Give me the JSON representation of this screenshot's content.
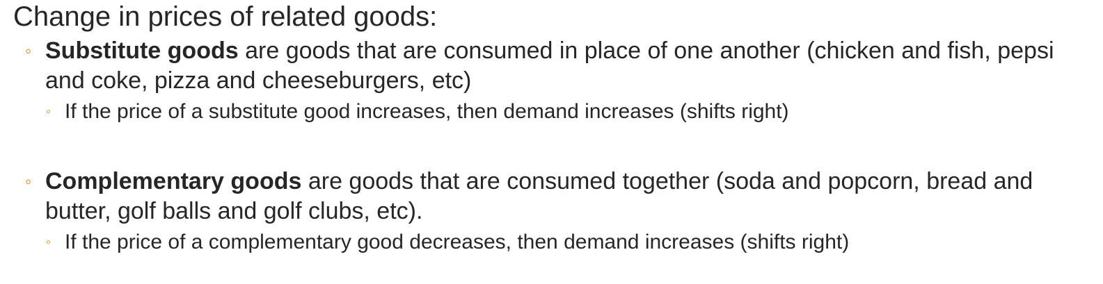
{
  "heading": "Change in prices of related goods:",
  "bullet_marker": "◦",
  "accent_color": "#E48312",
  "text_color": "#262626",
  "items": [
    {
      "term": "Substitute goods",
      "definition": " are goods that are consumed in place of one another (chicken and fish, pepsi and coke, pizza and cheeseburgers, etc)",
      "sub": "If the price of a substitute good increases, then demand increases (shifts right)"
    },
    {
      "term": "Complementary goods",
      "definition": " are goods that are consumed together (soda and popcorn, bread and butter, golf balls and golf clubs, etc).",
      "sub": "If the price of a complementary good decreases, then demand increases (shifts right)"
    }
  ]
}
